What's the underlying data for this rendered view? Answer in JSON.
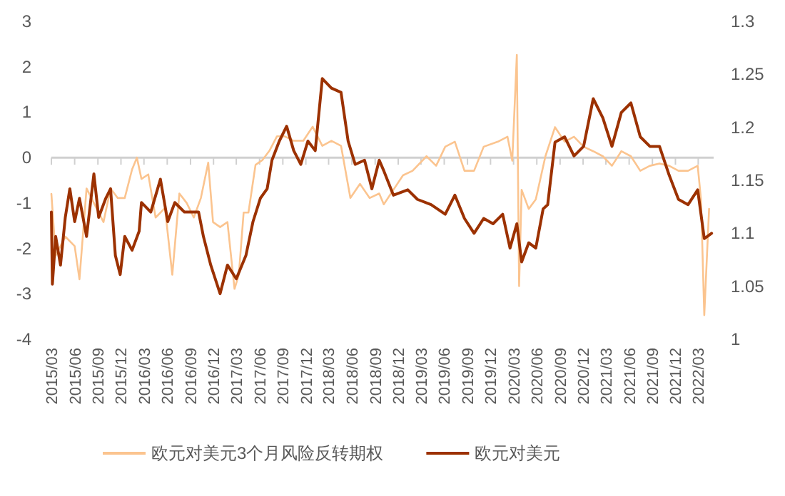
{
  "chart_data": {
    "type": "line",
    "legend": "bottom",
    "xlim": [
      "2015-03-01",
      "2022-05-01"
    ],
    "xticks": [
      {
        "value": "2015-03-01",
        "label": "2015/03"
      },
      {
        "value": "2015-06-01",
        "label": "2015/06"
      },
      {
        "value": "2015-09-01",
        "label": "2015/09"
      },
      {
        "value": "2015-12-01",
        "label": "2015/12"
      },
      {
        "value": "2016-03-01",
        "label": "2016/03"
      },
      {
        "value": "2016-06-01",
        "label": "2016/06"
      },
      {
        "value": "2016-09-01",
        "label": "2016/09"
      },
      {
        "value": "2016-12-01",
        "label": "2016/12"
      },
      {
        "value": "2017-03-01",
        "label": "2017/03"
      },
      {
        "value": "2017-06-01",
        "label": "2017/06"
      },
      {
        "value": "2017-09-01",
        "label": "2017/09"
      },
      {
        "value": "2017-12-01",
        "label": "2017/12"
      },
      {
        "value": "2018-03-01",
        "label": "2018/03"
      },
      {
        "value": "2018-06-01",
        "label": "2018/06"
      },
      {
        "value": "2018-09-01",
        "label": "2018/09"
      },
      {
        "value": "2018-12-01",
        "label": "2018/12"
      },
      {
        "value": "2019-03-01",
        "label": "2019/03"
      },
      {
        "value": "2019-06-01",
        "label": "2019/06"
      },
      {
        "value": "2019-09-01",
        "label": "2019/09"
      },
      {
        "value": "2019-12-01",
        "label": "2019/12"
      },
      {
        "value": "2020-03-01",
        "label": "2020/03"
      },
      {
        "value": "2020-06-01",
        "label": "2020/06"
      },
      {
        "value": "2020-09-01",
        "label": "2020/09"
      },
      {
        "value": "2020-12-01",
        "label": "2020/12"
      },
      {
        "value": "2021-03-01",
        "label": "2021/03"
      },
      {
        "value": "2021-06-01",
        "label": "2021/06"
      },
      {
        "value": "2021-09-01",
        "label": "2021/09"
      },
      {
        "value": "2021-12-01",
        "label": "2021/12"
      },
      {
        "value": "2022-03-01",
        "label": "2022/03"
      }
    ],
    "ylim": [
      -4,
      3
    ],
    "yticks": [
      -4,
      -3,
      -2,
      -1,
      0,
      1,
      2,
      3
    ],
    "y2lim": [
      1,
      1.3
    ],
    "y2ticks": [
      1,
      1.05,
      1.1,
      1.15,
      1.2,
      1.25,
      1.3
    ],
    "series": [
      {
        "name": "欧元对美元3个月风险反转期权",
        "color": "#fbc48f",
        "x": [
          "2015-03-01",
          "2015-03-18",
          "2015-04-25",
          "2015-06-01",
          "2015-06-20",
          "2015-07-18",
          "2015-08-16",
          "2015-09-23",
          "2015-10-21",
          "2015-11-18",
          "2015-12-16",
          "2016-01-14",
          "2016-02-02",
          "2016-02-20",
          "2016-03-18",
          "2016-04-16",
          "2016-05-23",
          "2016-06-21",
          "2016-07-19",
          "2016-08-17",
          "2016-09-14",
          "2016-10-12",
          "2016-11-10",
          "2016-11-29",
          "2016-12-27",
          "2017-01-25",
          "2017-02-22",
          "2017-03-11",
          "2017-03-30",
          "2017-04-18",
          "2017-05-16",
          "2017-06-13",
          "2017-07-11",
          "2017-08-09",
          "2017-09-07",
          "2017-10-14",
          "2017-11-21",
          "2017-12-28",
          "2018-02-04",
          "2018-03-12",
          "2018-04-19",
          "2018-05-26",
          "2018-07-03",
          "2018-08-10",
          "2018-09-17",
          "2018-10-05",
          "2018-11-12",
          "2018-12-20",
          "2019-01-27",
          "2019-03-23",
          "2019-04-30",
          "2019-06-05",
          "2019-07-13",
          "2019-08-20",
          "2019-09-27",
          "2019-11-04",
          "2019-12-30",
          "2020-02-06",
          "2020-02-25",
          "2020-03-14",
          "2020-03-23",
          "2020-04-02",
          "2020-04-30",
          "2020-05-28",
          "2020-07-05",
          "2020-08-12",
          "2020-09-19",
          "2020-10-26",
          "2020-12-03",
          "2021-01-10",
          "2021-02-17",
          "2021-03-25",
          "2021-05-01",
          "2021-06-08",
          "2021-07-15",
          "2021-08-22",
          "2021-09-29",
          "2021-11-06",
          "2021-12-13",
          "2022-01-20",
          "2022-02-27",
          "2022-03-12",
          "2022-03-25",
          "2022-04-13"
        ],
        "values": [
          -0.8,
          -2.16,
          -1.74,
          -1.95,
          -2.68,
          -0.68,
          -1.0,
          -1.42,
          -0.68,
          -0.89,
          -0.89,
          -0.26,
          0.0,
          -0.47,
          -0.37,
          -1.32,
          -1.11,
          -2.58,
          -0.79,
          -1.0,
          -1.32,
          -0.89,
          -0.11,
          -1.42,
          -1.53,
          -1.42,
          -2.89,
          -2.58,
          -1.21,
          -1.21,
          -0.16,
          -0.05,
          0.16,
          0.47,
          0.47,
          0.37,
          0.37,
          0.68,
          0.26,
          0.37,
          0.26,
          -0.89,
          -0.58,
          -0.89,
          -0.79,
          -1.03,
          -0.71,
          -0.39,
          -0.29,
          0.03,
          -0.18,
          0.24,
          0.35,
          -0.29,
          -0.29,
          0.24,
          0.35,
          0.46,
          -0.07,
          2.26,
          -2.83,
          -0.71,
          -1.13,
          -0.92,
          0.03,
          0.67,
          0.35,
          0.46,
          0.24,
          0.14,
          0.03,
          -0.18,
          0.14,
          0.03,
          -0.29,
          -0.18,
          -0.13,
          -0.18,
          -0.29,
          -0.29,
          -0.18,
          -0.92,
          -3.47,
          -1.13
        ]
      },
      {
        "name": "欧元对美元",
        "color": "#9c3100",
        "axis": "y2",
        "x": [
          "2015-03-01",
          "2015-03-05",
          "2015-03-18",
          "2015-04-06",
          "2015-04-25",
          "2015-05-13",
          "2015-06-01",
          "2015-06-20",
          "2015-07-18",
          "2015-08-16",
          "2015-09-04",
          "2015-10-02",
          "2015-10-21",
          "2015-11-09",
          "2015-11-28",
          "2015-12-16",
          "2016-01-14",
          "2016-02-11",
          "2016-02-20",
          "2016-03-28",
          "2016-05-05",
          "2016-06-03",
          "2016-07-01",
          "2016-08-08",
          "2016-10-03",
          "2016-10-22",
          "2016-11-20",
          "2016-12-27",
          "2017-01-25",
          "2017-03-01",
          "2017-04-08",
          "2017-05-06",
          "2017-06-04",
          "2017-07-01",
          "2017-07-20",
          "2017-08-18",
          "2017-09-16",
          "2017-10-14",
          "2017-11-11",
          "2017-12-09",
          "2018-01-07",
          "2018-02-04",
          "2018-03-12",
          "2018-04-19",
          "2018-05-17",
          "2018-06-14",
          "2018-07-21",
          "2018-08-19",
          "2018-09-17",
          "2018-10-05",
          "2018-11-12",
          "2019-01-08",
          "2019-02-15",
          "2019-04-10",
          "2019-06-05",
          "2019-07-13",
          "2019-08-20",
          "2019-09-27",
          "2019-11-04",
          "2019-12-11",
          "2020-01-18",
          "2020-02-16",
          "2020-03-14",
          "2020-04-02",
          "2020-04-30",
          "2020-05-28",
          "2020-06-26",
          "2020-07-14",
          "2020-08-12",
          "2020-09-19",
          "2020-10-26",
          "2020-12-03",
          "2021-01-10",
          "2021-02-17",
          "2021-03-25",
          "2021-05-01",
          "2021-06-08",
          "2021-07-15",
          "2021-08-22",
          "2021-09-29",
          "2021-11-06",
          "2021-12-13",
          "2022-01-20",
          "2022-02-27",
          "2022-03-25",
          "2022-04-23"
        ],
        "values": [
          1.12,
          1.052,
          1.097,
          1.07,
          1.115,
          1.142,
          1.111,
          1.133,
          1.097,
          1.156,
          1.115,
          1.133,
          1.142,
          1.079,
          1.061,
          1.097,
          1.084,
          1.102,
          1.129,
          1.12,
          1.151,
          1.111,
          1.129,
          1.12,
          1.12,
          1.097,
          1.07,
          1.043,
          1.07,
          1.057,
          1.079,
          1.111,
          1.133,
          1.142,
          1.169,
          1.187,
          1.201,
          1.178,
          1.165,
          1.187,
          1.178,
          1.246,
          1.237,
          1.233,
          1.187,
          1.165,
          1.169,
          1.142,
          1.169,
          1.159,
          1.136,
          1.141,
          1.132,
          1.127,
          1.118,
          1.136,
          1.114,
          1.1,
          1.114,
          1.109,
          1.118,
          1.086,
          1.109,
          1.073,
          1.091,
          1.086,
          1.123,
          1.127,
          1.186,
          1.191,
          1.173,
          1.182,
          1.227,
          1.209,
          1.182,
          1.214,
          1.223,
          1.191,
          1.182,
          1.182,
          1.155,
          1.132,
          1.127,
          1.141,
          1.095,
          1.1
        ]
      }
    ]
  }
}
